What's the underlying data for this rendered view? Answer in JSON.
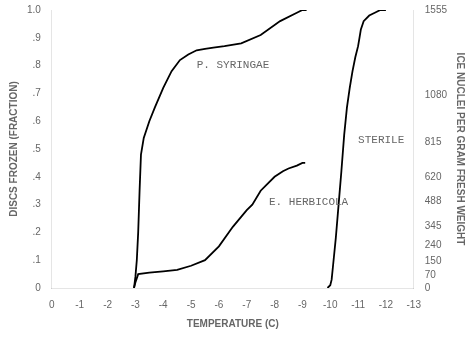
{
  "chart_data": {
    "type": "line",
    "xlabel": "TEMPERATURE (C)",
    "ylabel": "DISCS FROZEN (FRACTION)",
    "y2label": "ICE NUCLEI PER GRAM FRESH WEIGHT",
    "xlim": [
      0,
      -13
    ],
    "xticks": [
      0,
      -1,
      -2,
      -3,
      -4,
      -5,
      -6,
      -7,
      -8,
      -9,
      -10,
      -11,
      -12,
      -13
    ],
    "ylim": [
      0,
      1.0
    ],
    "yticks": [
      0,
      {
        "value": 0.1,
        "label": ".1"
      },
      {
        "value": 0.2,
        "label": ".2"
      },
      {
        "value": 0.3,
        "label": ".3"
      },
      {
        "value": 0.4,
        "label": ".4"
      },
      {
        "value": 0.5,
        "label": ".5"
      },
      {
        "value": 0.6,
        "label": ".6"
      },
      {
        "value": 0.7,
        "label": ".7"
      },
      {
        "value": 0.8,
        "label": ".8"
      },
      {
        "value": 0.9,
        "label": ".9"
      },
      {
        "value": 1.0,
        "label": "1.0"
      }
    ],
    "y2lim": [
      0,
      1555
    ],
    "y2ticks": [
      0,
      70,
      150,
      240,
      345,
      488,
      620,
      815,
      1080,
      1555
    ],
    "grid": false,
    "series": [
      {
        "color": "#000000",
        "x": [
          -2.95,
          -3.0,
          -3.05,
          -3.1,
          -3.15,
          -3.2,
          -3.3,
          -3.5,
          -3.7,
          -4.0,
          -4.3,
          -4.6,
          -4.9,
          -5.2,
          -5.5,
          -5.8,
          -6.2,
          -6.8,
          -7.5,
          -8.2,
          -8.8,
          -9.0,
          -9.1,
          -9.15
        ],
        "values": [
          0.0,
          0.04,
          0.1,
          0.2,
          0.35,
          0.48,
          0.54,
          0.6,
          0.65,
          0.72,
          0.78,
          0.82,
          0.84,
          0.855,
          0.86,
          0.865,
          0.87,
          0.88,
          0.91,
          0.96,
          0.99,
          1.0,
          1.0,
          1.0
        ]
      },
      {
        "color": "#000000",
        "x": [
          -2.95,
          -3.0,
          -3.1,
          -3.5,
          -4.0,
          -4.5,
          -5.0,
          -5.5,
          -6.0,
          -6.5,
          -7.0,
          -7.2,
          -7.5,
          -7.7,
          -8.0,
          -8.3,
          -8.5,
          -8.8,
          -9.0,
          -9.1
        ],
        "values": [
          0.0,
          0.02,
          0.05,
          0.055,
          0.06,
          0.065,
          0.08,
          0.1,
          0.15,
          0.22,
          0.28,
          0.3,
          0.35,
          0.37,
          0.4,
          0.42,
          0.43,
          0.44,
          0.45,
          0.45
        ]
      },
      {
        "color": "#000000",
        "x": [
          -9.9,
          -10.0,
          -10.05,
          -10.1,
          -10.2,
          -10.3,
          -10.4,
          -10.5,
          -10.6,
          -10.7,
          -10.8,
          -10.9,
          -11.0,
          -11.05,
          -11.1,
          -11.2,
          -11.4,
          -11.6,
          -11.8,
          -11.9,
          -12.0
        ],
        "values": [
          0.0,
          0.01,
          0.03,
          0.08,
          0.18,
          0.3,
          0.42,
          0.55,
          0.65,
          0.72,
          0.78,
          0.83,
          0.87,
          0.9,
          0.93,
          0.96,
          0.98,
          0.99,
          1.0,
          1.0,
          1.0
        ]
      }
    ],
    "annotations": [
      {
        "text": "P. SYRINGAE",
        "x": -5.2,
        "y": 0.79
      },
      {
        "text": "E. HERBICOLA",
        "x": -7.8,
        "y": 0.3
      },
      {
        "text": "STERILE",
        "x": -11.0,
        "y": 0.52
      }
    ]
  }
}
